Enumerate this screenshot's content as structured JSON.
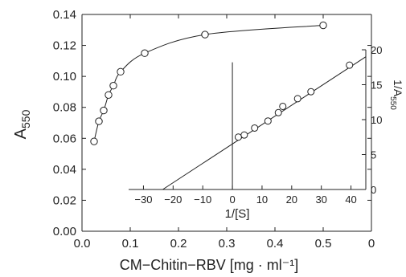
{
  "chart_data": [
    {
      "type": "scatter",
      "title": "",
      "xlabel": "CM−Chitin−RBV [mg · ml⁻¹]",
      "ylabel": "A",
      "ylabel_sub": "550",
      "xlim": [
        0.0,
        0.6
      ],
      "ylim": [
        0.0,
        0.14
      ],
      "xticks": [
        "0.0",
        "0.1",
        "0.2",
        "0.3",
        "0.4",
        "0.5",
        "0"
      ],
      "yticks": [
        "0.00",
        "0.02",
        "0.04",
        "0.06",
        "0.08",
        "0.10",
        "0.12",
        "0.14"
      ],
      "grid": false,
      "series": [
        {
          "x": [
            0.025,
            0.035,
            0.045,
            0.055,
            0.065,
            0.08,
            0.13,
            0.255,
            0.5
          ],
          "y": [
            0.058,
            0.071,
            0.078,
            0.088,
            0.094,
            0.103,
            0.115,
            0.127,
            0.133
          ],
          "marker": "open-circle",
          "fit_curve": true
        }
      ]
    },
    {
      "type": "scatter",
      "title": "",
      "xlabel": "1/[S]",
      "ylabel": "1/A",
      "ylabel_sub": "550",
      "xlim": [
        -35,
        45
      ],
      "ylim": [
        0,
        20
      ],
      "xticks": [
        "−30",
        "−20",
        "−10",
        "0",
        "10",
        "20",
        "30",
        "40"
      ],
      "yticks": [
        "0",
        "5",
        "10",
        "15",
        "20"
      ],
      "grid": false,
      "series": [
        {
          "x": [
            2,
            4,
            7.5,
            12,
            15.5,
            17,
            22,
            26.5,
            39.5
          ],
          "y": [
            7.5,
            7.8,
            8.8,
            9.8,
            11.0,
            11.9,
            13.0,
            14.0,
            17.8
          ],
          "marker": "open-circle",
          "fit_line": {
            "x_start": -23.5,
            "x_end": 45,
            "y_start": 0,
            "y_end": 19.0
          }
        }
      ]
    }
  ]
}
